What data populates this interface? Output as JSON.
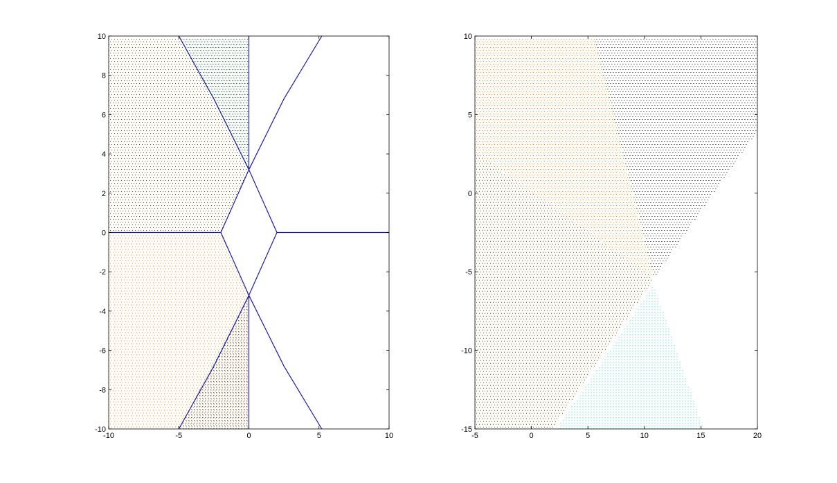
{
  "chart_data": [
    {
      "type": "scatter",
      "title": "",
      "xlabel": "",
      "ylabel": "",
      "xlim": [
        -10,
        10
      ],
      "ylim": [
        -10,
        10
      ],
      "grid": false,
      "legend": "none",
      "x_ticks": [
        "-10",
        "-5",
        "0",
        "5",
        "10"
      ],
      "y_ticks": [
        "-10",
        "-8",
        "-6",
        "-4",
        "-2",
        "0",
        "2",
        "4",
        "6",
        "8",
        "10"
      ],
      "colors": {
        "brown": "#7a4a12",
        "orange": "#f08c1a",
        "cyan": "#3cc8d2",
        "black": "#000000",
        "curve": "#1a1aa0"
      },
      "point_regions": [
        {
          "color": "brown",
          "polygon": [
            [
              -10,
              0
            ],
            [
              -2,
              0
            ],
            [
              0,
              3.2
            ],
            [
              0,
              10
            ],
            [
              -10,
              10
            ]
          ]
        },
        {
          "color": "cyan",
          "polygon": [
            [
              -5,
              10
            ],
            [
              0,
              10
            ],
            [
              0,
              3.2
            ]
          ]
        },
        {
          "color": "orange",
          "polygon": [
            [
              -10,
              0
            ],
            [
              -2,
              0
            ],
            [
              0,
              -3.2
            ],
            [
              0,
              -10
            ],
            [
              -10,
              -10
            ]
          ]
        },
        {
          "color": "black",
          "polygon": [
            [
              -5,
              -10
            ],
            [
              0,
              -10
            ],
            [
              0,
              -3.2
            ]
          ]
        }
      ],
      "curves": [
        {
          "name": "",
          "x": [
            -10,
            -2
          ],
          "y": [
            0,
            0
          ]
        },
        {
          "name": "",
          "x": [
            -2,
            0,
            2
          ],
          "y": [
            0,
            3.2,
            0
          ]
        },
        {
          "name": "",
          "x": [
            -2,
            0,
            2
          ],
          "y": [
            0,
            -3.2,
            0
          ]
        },
        {
          "name": "",
          "x": [
            2,
            10
          ],
          "y": [
            0,
            0
          ]
        },
        {
          "name": "",
          "x": [
            0,
            0
          ],
          "y": [
            3.2,
            10
          ]
        },
        {
          "name": "",
          "x": [
            0,
            0
          ],
          "y": [
            -3.2,
            -10
          ]
        },
        {
          "name": "",
          "x": [
            -5,
            -2.5,
            0
          ],
          "y": [
            10,
            6.8,
            3.2
          ]
        },
        {
          "name": "",
          "x": [
            -5,
            -2.5,
            0
          ],
          "y": [
            -10,
            -6.8,
            -3.2
          ]
        },
        {
          "name": "",
          "x": [
            0,
            2.5,
            5.2
          ],
          "y": [
            3.2,
            6.8,
            10
          ]
        },
        {
          "name": "",
          "x": [
            0,
            2.5,
            5.2
          ],
          "y": [
            -3.2,
            -6.8,
            -10
          ]
        }
      ]
    },
    {
      "type": "scatter",
      "title": "",
      "xlabel": "",
      "ylabel": "",
      "xlim": [
        -5,
        20
      ],
      "ylim": [
        -15,
        10
      ],
      "grid": false,
      "legend": "none",
      "x_ticks": [
        "-5",
        "0",
        "5",
        "10",
        "15",
        "20"
      ],
      "y_ticks": [
        "-15",
        "-10",
        "-5",
        "0",
        "5",
        "10"
      ],
      "colors": {
        "brown": "#7a4a12",
        "orange": "#f08c1a",
        "cyan": "#3cc8d2",
        "black": "#000000"
      },
      "point_regions": [
        {
          "color": "orange",
          "polygon": [
            [
              -5,
              2.6
            ],
            [
              10.8,
              -5.4
            ],
            [
              5.5,
              10
            ],
            [
              -5,
              10
            ]
          ]
        },
        {
          "color": "black",
          "polygon": [
            [
              5.5,
              10
            ],
            [
              20,
              10
            ],
            [
              20,
              4
            ],
            [
              10.8,
              -5.4
            ]
          ]
        },
        {
          "color": "brown",
          "polygon": [
            [
              -5,
              2.6
            ],
            [
              10.8,
              -5.4
            ],
            [
              1.8,
              -15
            ],
            [
              -5,
              -15
            ]
          ]
        },
        {
          "color": "cyan",
          "polygon": [
            [
              2.2,
              -15
            ],
            [
              10.8,
              -5.8
            ],
            [
              15.2,
              -15
            ]
          ]
        }
      ]
    }
  ]
}
